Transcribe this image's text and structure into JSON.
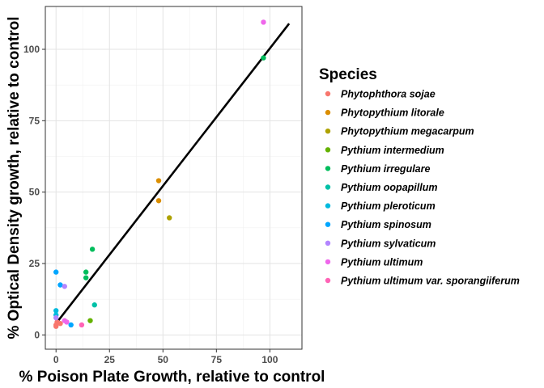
{
  "chart_data": {
    "type": "scatter",
    "xlabel": "% Poison Plate Growth, relative to control",
    "ylabel": "% Optical Density growth, relative to control",
    "xlim": [
      -5,
      115
    ],
    "ylim": [
      -5,
      115
    ],
    "xticks": [
      0,
      25,
      50,
      75,
      100
    ],
    "yticks": [
      0,
      25,
      50,
      75,
      100
    ],
    "grid": true,
    "legend": {
      "title": "Species",
      "position": "right"
    },
    "trendline": {
      "x": [
        0,
        109
      ],
      "y": [
        4,
        109
      ]
    },
    "series": [
      {
        "name": "Phytophthora sojae",
        "color": "#F8766D",
        "points": [
          [
            0,
            3.5
          ],
          [
            0.5,
            4.5
          ],
          [
            2,
            4
          ],
          [
            0,
            3
          ]
        ]
      },
      {
        "name": "Phytopythium litorale",
        "color": "#DB8E00",
        "points": [
          [
            48,
            54
          ],
          [
            48,
            47
          ]
        ]
      },
      {
        "name": "Phytopythium megacarpum",
        "color": "#AEA200",
        "points": [
          [
            53,
            41
          ]
        ]
      },
      {
        "name": "Pythium intermedium",
        "color": "#64B200",
        "points": [
          [
            16,
            5
          ]
        ]
      },
      {
        "name": "Pythium irregulare",
        "color": "#00BD5C",
        "points": [
          [
            97,
            97
          ],
          [
            17,
            30
          ],
          [
            14,
            22
          ],
          [
            14,
            20
          ]
        ]
      },
      {
        "name": "Pythium oopapillum",
        "color": "#00C1A7",
        "points": [
          [
            18,
            10.5
          ]
        ]
      },
      {
        "name": "Pythium pleroticum",
        "color": "#00BADE",
        "points": [
          [
            0,
            8.5
          ],
          [
            0,
            7
          ]
        ]
      },
      {
        "name": "Pythium spinosum",
        "color": "#00A6FF",
        "points": [
          [
            0,
            22
          ],
          [
            2,
            17.5
          ],
          [
            7,
            3.5
          ]
        ]
      },
      {
        "name": "Pythium sylvaticum",
        "color": "#B385FF",
        "points": [
          [
            4,
            17
          ],
          [
            0,
            6
          ]
        ]
      },
      {
        "name": "Pythium ultimum",
        "color": "#EF67EB",
        "points": [
          [
            97,
            109.5
          ],
          [
            4,
            5
          ],
          [
            5,
            4.5
          ]
        ]
      },
      {
        "name": "Pythium ultimum var. sporangiiferum",
        "color": "#FF63B6",
        "points": [
          [
            12,
            3.5
          ]
        ]
      }
    ]
  }
}
